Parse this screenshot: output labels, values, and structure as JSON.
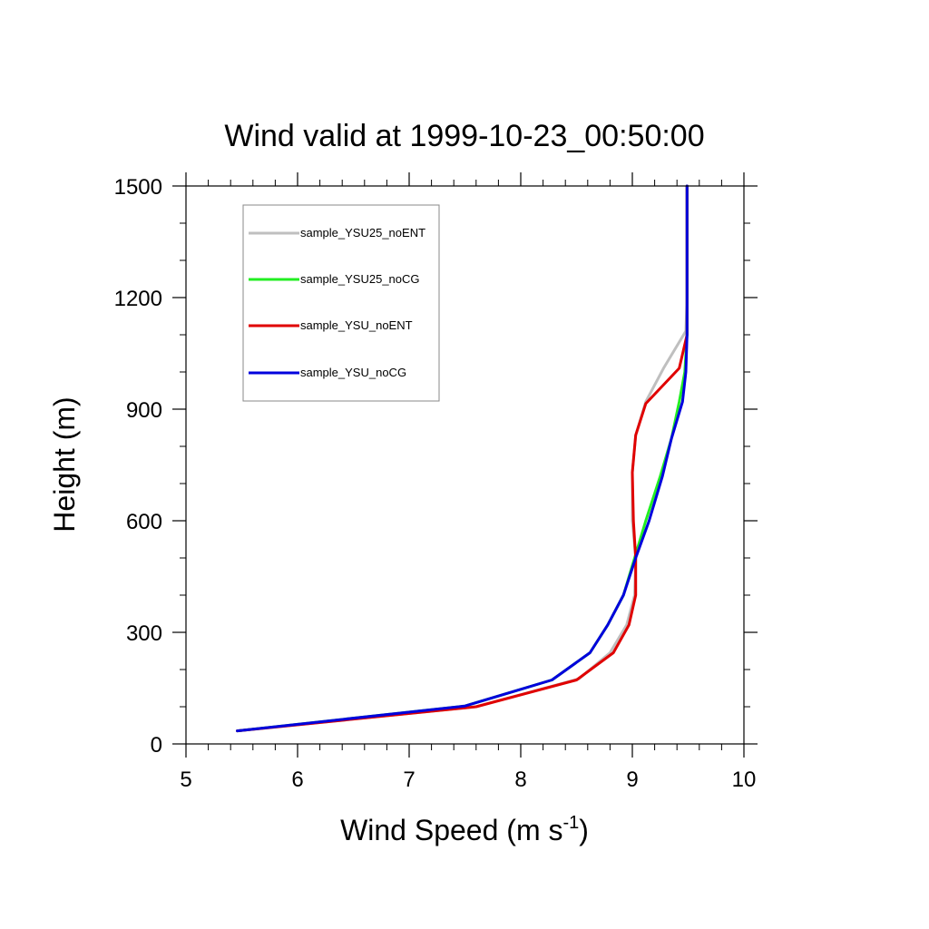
{
  "chart_data": {
    "type": "line",
    "title": "Wind valid at 1999-10-23_00:50:00",
    "xlabel_main": "Wind Speed (m s",
    "xlabel_sup": "-1",
    "xlabel_close": ")",
    "ylabel": "Height (m)",
    "xlim": [
      5,
      10
    ],
    "ylim": [
      0,
      1500
    ],
    "xticks": [
      5,
      6,
      7,
      8,
      9,
      10
    ],
    "xtick_labels": [
      "5",
      "6",
      "7",
      "8",
      "9",
      "10"
    ],
    "yticks": [
      0,
      300,
      600,
      900,
      1200,
      1500
    ],
    "ytick_labels": [
      "0",
      "300",
      "600",
      "900",
      "1200",
      "1500"
    ],
    "x_minor_step": 0.2,
    "y_minor_step": 100,
    "grid": false,
    "legend_position": "top-left",
    "series": [
      {
        "name": "sample_YSU25_noENT",
        "color": "#bfbfbf",
        "points": [
          [
            5.46,
            35
          ],
          [
            7.6,
            100
          ],
          [
            8.52,
            175
          ],
          [
            8.8,
            245
          ],
          [
            8.95,
            320
          ],
          [
            9.02,
            400
          ],
          [
            9.03,
            500
          ],
          [
            9.0,
            600
          ],
          [
            9.0,
            730
          ],
          [
            9.03,
            830
          ],
          [
            9.12,
            920
          ],
          [
            9.28,
            1010
          ],
          [
            9.48,
            1110
          ],
          [
            9.49,
            1200
          ],
          [
            9.49,
            1300
          ],
          [
            9.49,
            1400
          ],
          [
            9.49,
            1500
          ]
        ]
      },
      {
        "name": "sample_YSU25_noCG",
        "color": "#22ee22",
        "points": [
          [
            5.46,
            35
          ],
          [
            7.5,
            102
          ],
          [
            8.28,
            172
          ],
          [
            8.62,
            245
          ],
          [
            8.78,
            320
          ],
          [
            8.92,
            400
          ],
          [
            9.02,
            500
          ],
          [
            9.12,
            600
          ],
          [
            9.25,
            720
          ],
          [
            9.35,
            820
          ],
          [
            9.42,
            920
          ],
          [
            9.47,
            1000
          ],
          [
            9.49,
            1100
          ],
          [
            9.49,
            1200
          ],
          [
            9.49,
            1300
          ],
          [
            9.49,
            1400
          ],
          [
            9.49,
            1500
          ]
        ]
      },
      {
        "name": "sample_YSU_noENT",
        "color": "#e00000",
        "points": [
          [
            5.46,
            35
          ],
          [
            7.6,
            100
          ],
          [
            8.5,
            172
          ],
          [
            8.83,
            245
          ],
          [
            8.97,
            320
          ],
          [
            9.03,
            400
          ],
          [
            9.03,
            500
          ],
          [
            9.01,
            600
          ],
          [
            9.0,
            730
          ],
          [
            9.03,
            830
          ],
          [
            9.12,
            915
          ],
          [
            9.42,
            1010
          ],
          [
            9.49,
            1100
          ],
          [
            9.49,
            1200
          ],
          [
            9.49,
            1300
          ],
          [
            9.49,
            1400
          ],
          [
            9.49,
            1500
          ]
        ]
      },
      {
        "name": "sample_YSU_noCG",
        "color": "#0000dd",
        "points": [
          [
            5.46,
            35
          ],
          [
            7.5,
            102
          ],
          [
            8.28,
            172
          ],
          [
            8.62,
            245
          ],
          [
            8.78,
            320
          ],
          [
            8.92,
            400
          ],
          [
            9.03,
            500
          ],
          [
            9.15,
            600
          ],
          [
            9.27,
            720
          ],
          [
            9.35,
            820
          ],
          [
            9.45,
            920
          ],
          [
            9.48,
            1000
          ],
          [
            9.49,
            1100
          ],
          [
            9.49,
            1200
          ],
          [
            9.49,
            1300
          ],
          [
            9.49,
            1400
          ],
          [
            9.49,
            1500
          ]
        ]
      }
    ]
  }
}
